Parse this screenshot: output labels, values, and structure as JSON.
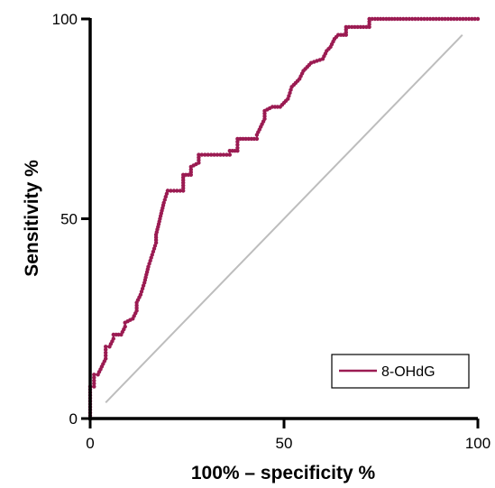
{
  "chart_data": {
    "type": "line",
    "title": "",
    "xlabel": "100% – specificity %",
    "ylabel": "Sensitivity %",
    "xlim": [
      0,
      100
    ],
    "ylim": [
      0,
      100
    ],
    "x_ticks": [
      "0",
      "50",
      "100"
    ],
    "y_ticks": [
      "0",
      "50",
      "100"
    ],
    "grid": false,
    "legend_position": "bottom-right",
    "colors": {
      "series": "#9b1b52",
      "reference": "#bdbdbd",
      "axis": "#000000"
    },
    "series": [
      {
        "name": "8-OHdG",
        "x": [
          0,
          0,
          1,
          1,
          2,
          3,
          4,
          4,
          5,
          6,
          6,
          8,
          9,
          9,
          11,
          12,
          12,
          13,
          14,
          15,
          16,
          17,
          17,
          18,
          19,
          20,
          20,
          24,
          24,
          26,
          26,
          28,
          28,
          32,
          36,
          36,
          38,
          38,
          43,
          43,
          45,
          45,
          47,
          49,
          51,
          52,
          54,
          55,
          56,
          57,
          60,
          61,
          62,
          63,
          64,
          66,
          66,
          72,
          72,
          80,
          90,
          100
        ],
        "y": [
          0,
          8,
          8,
          11,
          11,
          13,
          15,
          18,
          18,
          20,
          21,
          21,
          23,
          24,
          25,
          27,
          29,
          31,
          34,
          38,
          41,
          44,
          46,
          50,
          54,
          57,
          57,
          57,
          61,
          61,
          63,
          64,
          66,
          66,
          66,
          67,
          67,
          70,
          70,
          71,
          75,
          77,
          78,
          78,
          80,
          83,
          85,
          87,
          88,
          89,
          90,
          92,
          93,
          95,
          96,
          96,
          98,
          98,
          100,
          100,
          100,
          100
        ]
      }
    ],
    "reference_line": {
      "x": [
        4,
        96
      ],
      "y": [
        4,
        96
      ]
    }
  }
}
